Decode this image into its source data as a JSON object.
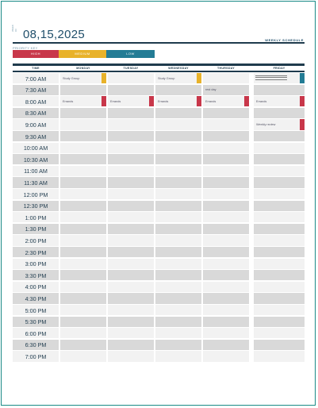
{
  "header": {
    "week_of_label": "WEEK OF",
    "date": "08,15,2025",
    "title": "WEEKLY SCHEDULE"
  },
  "priority": {
    "label": "PRIORITY KEY",
    "items": [
      {
        "label": "HIGH",
        "color": "#c8374a"
      },
      {
        "label": "MEDIUM",
        "color": "#e8b22a"
      },
      {
        "label": "LOW",
        "color": "#237c95"
      }
    ]
  },
  "columns": [
    "TIME",
    "MONDAY",
    "TUESDAY",
    "WEDNESDAY",
    "THURSDAY",
    "FRIDAY"
  ],
  "times": [
    "7:00 AM",
    "7:30 AM",
    "8:00 AM",
    "8:30 AM",
    "9:00 AM",
    "9:30 AM",
    "10:00 AM",
    "10:30 AM",
    "11:00 AM",
    "11:30 AM",
    "12:00 PM",
    "12:30 PM",
    "1:00 PM",
    "1:30 PM",
    "2:00 PM",
    "2:30 PM",
    "3:00 PM",
    "3:30 PM",
    "4:00 PM",
    "4:30 PM",
    "5:00 PM",
    "5:30 PM",
    "6:00 PM",
    "6:30 PM",
    "7:00 PM"
  ],
  "events": [
    {
      "day": 0,
      "row": 0,
      "text": "Study Group",
      "priority": "medium"
    },
    {
      "day": 2,
      "row": 0,
      "text": "Study Group",
      "priority": "medium"
    },
    {
      "day": 4,
      "row": 0,
      "text": "",
      "priority": "low",
      "struck": true
    },
    {
      "day": 3,
      "row": 1,
      "text": "rest day",
      "priority": "none"
    },
    {
      "day": 0,
      "row": 2,
      "text": "Errands",
      "priority": "high"
    },
    {
      "day": 1,
      "row": 2,
      "text": "Errands",
      "priority": "high"
    },
    {
      "day": 2,
      "row": 2,
      "text": "Errands",
      "priority": "high"
    },
    {
      "day": 3,
      "row": 2,
      "text": "Errands",
      "priority": "high"
    },
    {
      "day": 4,
      "row": 2,
      "text": "Errands",
      "priority": "high"
    },
    {
      "day": 4,
      "row": 4,
      "text": "Weekly review",
      "priority": "high"
    }
  ]
}
